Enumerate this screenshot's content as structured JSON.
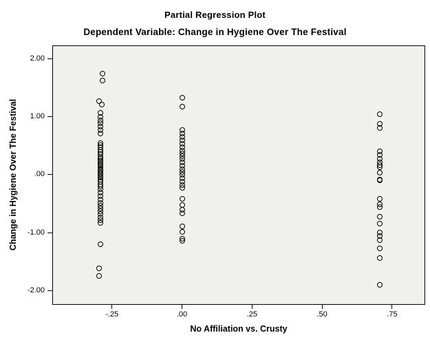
{
  "colors": {
    "figure_bg": "#ffffff",
    "plot_bg": "#f0f0ee",
    "frame": "#000000",
    "marker_stroke": "#000000",
    "text": "#000000"
  },
  "chart_data": {
    "type": "scatter",
    "title": "Partial Regression Plot",
    "subtitle": "Dependent Variable: Change in Hygiene Over The Festival",
    "xlabel": "No Affiliation vs. Crusty",
    "ylabel": "Change in Hygiene Over The Festival",
    "marker": "open-circle",
    "grid": false,
    "legend": "none",
    "xlim": [
      -0.463,
      0.868
    ],
    "ylim": [
      -2.237,
      2.225
    ],
    "x_ticks": [
      {
        "value": -0.25,
        "label": "-.25"
      },
      {
        "value": 0.0,
        "label": ".00"
      },
      {
        "value": 0.25,
        "label": ".25"
      },
      {
        "value": 0.5,
        "label": ".50"
      },
      {
        "value": 0.75,
        "label": ".75"
      }
    ],
    "y_ticks": [
      {
        "value": 2.0,
        "label": "2.00"
      },
      {
        "value": 1.0,
        "label": "1.00"
      },
      {
        "value": 0.0,
        "label": ".00"
      },
      {
        "value": -1.0,
        "label": "-1.00"
      },
      {
        "value": -2.0,
        "label": "-2.00"
      }
    ],
    "series": [
      {
        "name": "cases",
        "points": [
          [
            -0.284,
            1.74
          ],
          [
            -0.284,
            1.62
          ],
          [
            -0.295,
            1.27
          ],
          [
            -0.286,
            1.21
          ],
          [
            -0.292,
            1.07
          ],
          [
            -0.292,
            1.0
          ],
          [
            -0.292,
            0.94
          ],
          [
            -0.292,
            0.89
          ],
          [
            -0.292,
            0.83
          ],
          [
            -0.292,
            0.77
          ],
          [
            -0.292,
            0.71
          ],
          [
            -0.292,
            0.55
          ],
          [
            -0.292,
            0.51
          ],
          [
            -0.292,
            0.47
          ],
          [
            -0.292,
            0.43
          ],
          [
            -0.292,
            0.39
          ],
          [
            -0.292,
            0.35
          ],
          [
            -0.292,
            0.31
          ],
          [
            -0.292,
            0.28
          ],
          [
            -0.292,
            0.25
          ],
          [
            -0.292,
            0.22
          ],
          [
            -0.292,
            0.19
          ],
          [
            -0.292,
            0.16
          ],
          [
            -0.292,
            0.13
          ],
          [
            -0.292,
            0.1
          ],
          [
            -0.292,
            0.07
          ],
          [
            -0.292,
            0.04
          ],
          [
            -0.292,
            0.01
          ],
          [
            -0.292,
            -0.02
          ],
          [
            -0.292,
            -0.05
          ],
          [
            -0.292,
            -0.08
          ],
          [
            -0.292,
            -0.12
          ],
          [
            -0.292,
            -0.16
          ],
          [
            -0.292,
            -0.2
          ],
          [
            -0.292,
            -0.25
          ],
          [
            -0.292,
            -0.31
          ],
          [
            -0.292,
            -0.37
          ],
          [
            -0.292,
            -0.43
          ],
          [
            -0.292,
            -0.48
          ],
          [
            -0.292,
            -0.53
          ],
          [
            -0.292,
            -0.58
          ],
          [
            -0.292,
            -0.63
          ],
          [
            -0.292,
            -0.68
          ],
          [
            -0.292,
            -0.73
          ],
          [
            -0.292,
            -0.78
          ],
          [
            -0.292,
            -0.83
          ],
          [
            -0.292,
            -1.2
          ],
          [
            -0.296,
            -1.61
          ],
          [
            -0.296,
            -1.74
          ],
          [
            0.0,
            1.32
          ],
          [
            0.0,
            1.17
          ],
          [
            0.0,
            0.77
          ],
          [
            0.0,
            0.71
          ],
          [
            0.0,
            0.65
          ],
          [
            0.0,
            0.59
          ],
          [
            0.0,
            0.53
          ],
          [
            0.0,
            0.47
          ],
          [
            0.0,
            0.42
          ],
          [
            0.0,
            0.37
          ],
          [
            0.0,
            0.32
          ],
          [
            0.0,
            0.27
          ],
          [
            0.0,
            0.21
          ],
          [
            0.0,
            0.15
          ],
          [
            0.0,
            0.09
          ],
          [
            0.0,
            0.05
          ],
          [
            0.0,
            0.0
          ],
          [
            0.0,
            -0.06
          ],
          [
            0.0,
            -0.12
          ],
          [
            0.0,
            -0.18
          ],
          [
            0.0,
            -0.23
          ],
          [
            0.0,
            -0.41
          ],
          [
            0.0,
            -0.52
          ],
          [
            0.0,
            -0.6
          ],
          [
            0.0,
            -0.66
          ],
          [
            0.0,
            -0.89
          ],
          [
            0.0,
            -0.98
          ],
          [
            0.0,
            -1.1
          ],
          [
            0.0,
            -1.14
          ],
          [
            0.706,
            1.04
          ],
          [
            0.706,
            0.88
          ],
          [
            0.706,
            0.8
          ],
          [
            0.706,
            0.4
          ],
          [
            0.706,
            0.34
          ],
          [
            0.706,
            0.27
          ],
          [
            0.706,
            0.21
          ],
          [
            0.706,
            0.16
          ],
          [
            0.706,
            0.13
          ],
          [
            0.706,
            0.04
          ],
          [
            0.706,
            -0.08
          ],
          [
            0.706,
            -0.1
          ],
          [
            0.706,
            -0.41
          ],
          [
            0.706,
            -0.51
          ],
          [
            0.706,
            -0.56
          ],
          [
            0.706,
            -0.72
          ],
          [
            0.706,
            -0.84
          ],
          [
            0.706,
            -1.0
          ],
          [
            0.706,
            -1.05
          ],
          [
            0.706,
            -1.12
          ],
          [
            0.706,
            -1.27
          ],
          [
            0.706,
            -1.43
          ],
          [
            0.706,
            -1.89
          ]
        ]
      }
    ]
  }
}
